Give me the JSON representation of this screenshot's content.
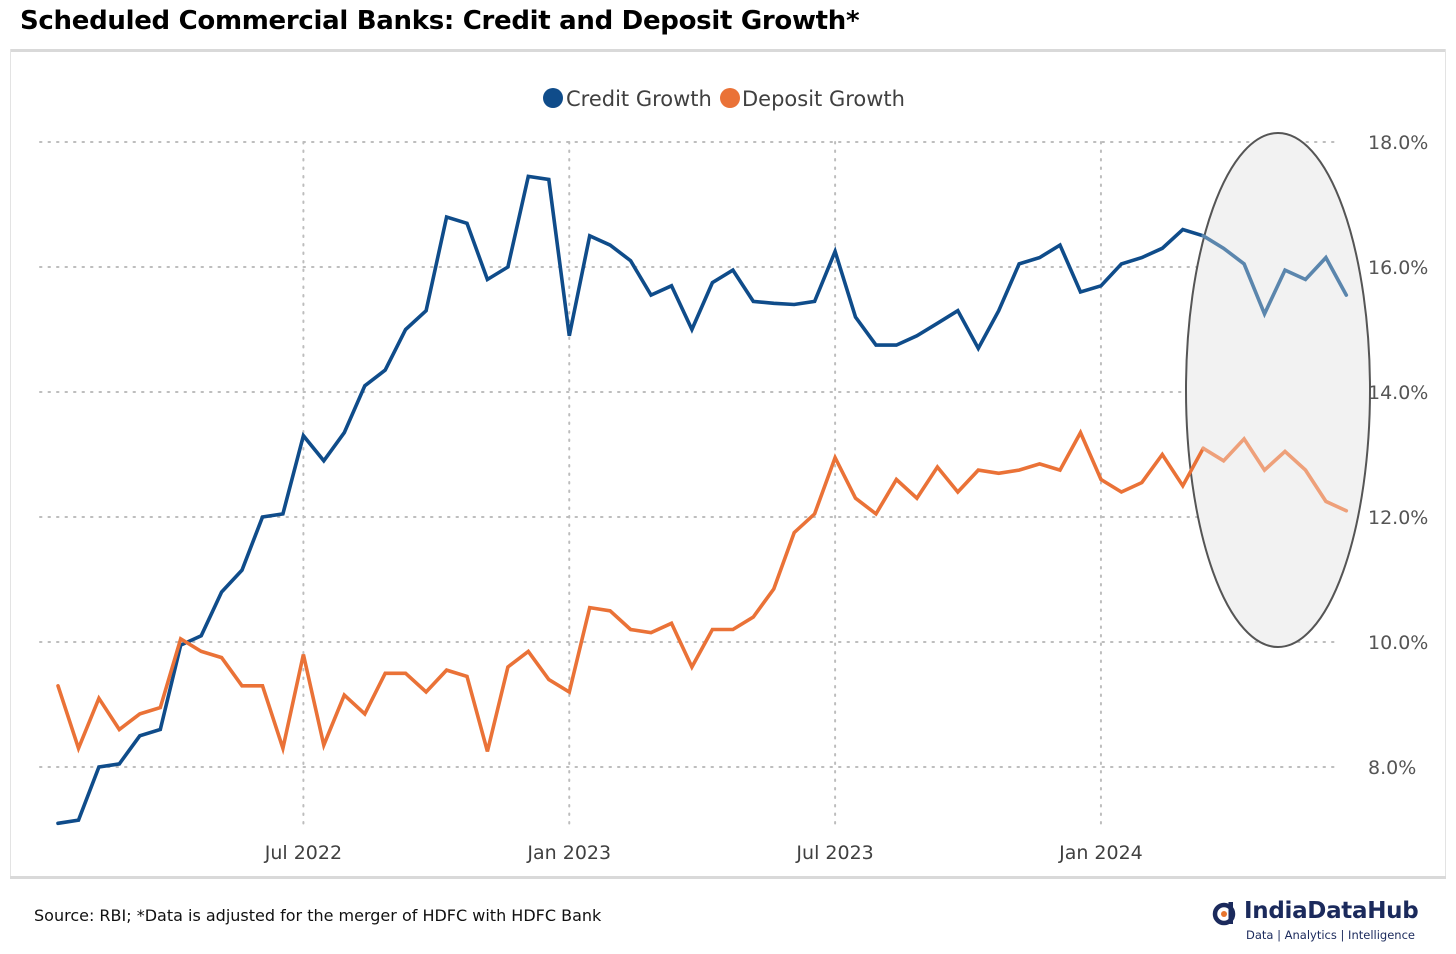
{
  "header": {
    "title": "Scheduled Commercial Banks: Credit and Deposit Growth*"
  },
  "footer": {
    "source": "Source: RBI; *Data is adjusted for the merger of HDFC with HDFC Bank",
    "brand_name": "IndiaDataHub",
    "brand_tagline": "Data | Analytics | Intelligence"
  },
  "colors": {
    "credit": "#0f4c8a",
    "credit_highlight": "#5b86ad",
    "deposit": "#ea7237",
    "deposit_highlight": "#eea07a",
    "highlight_fill": "#f2f2f2",
    "highlight_stroke": "#555555"
  },
  "chart_data": {
    "type": "line",
    "title": "Scheduled Commercial Banks: Credit and Deposit Growth*",
    "y_tick_labels": [
      "8.0%",
      "10.0%",
      "12.0%",
      "14.0%",
      "16.0%",
      "18.0%"
    ],
    "y_ticks": [
      8,
      10,
      12,
      14,
      16,
      18
    ],
    "ylim": [
      7.0,
      18.8
    ],
    "x_tick_labels": [
      "Jul 2022",
      "Jan 2023",
      "Jul 2023",
      "Jan 2024"
    ],
    "x_ticks": [
      12,
      25,
      38,
      51
    ],
    "xlim": [
      -0.15,
      65.5
    ],
    "legend": {
      "position": "top-center",
      "entries": [
        "Credit Growth",
        "Deposit Growth"
      ]
    },
    "grid": "dotted",
    "highlight_from_index": 56,
    "series": [
      {
        "name": "Credit Growth",
        "values": [
          7.1,
          7.15,
          8.0,
          8.05,
          8.5,
          8.6,
          9.95,
          10.1,
          10.8,
          11.15,
          12.0,
          12.05,
          13.3,
          12.9,
          13.35,
          14.1,
          14.35,
          15.0,
          15.3,
          16.8,
          16.7,
          15.8,
          16.0,
          17.45,
          17.4,
          14.9,
          16.5,
          16.35,
          16.1,
          15.55,
          15.7,
          15.0,
          15.75,
          15.95,
          15.45,
          15.42,
          15.4,
          15.45,
          16.25,
          15.2,
          14.75,
          14.75,
          14.9,
          15.1,
          15.3,
          14.7,
          15.3,
          16.05,
          16.15,
          16.35,
          15.6,
          15.7,
          16.05,
          16.15,
          16.3,
          16.6,
          16.5,
          16.3,
          16.05,
          15.25,
          15.95,
          15.8,
          16.15,
          15.55
        ]
      },
      {
        "name": "Deposit Growth",
        "values": [
          9.3,
          8.3,
          9.1,
          8.6,
          8.85,
          8.95,
          10.05,
          9.85,
          9.75,
          9.3,
          9.3,
          8.3,
          9.8,
          8.35,
          9.15,
          8.85,
          9.5,
          9.5,
          9.2,
          9.55,
          9.45,
          8.25,
          9.6,
          9.85,
          9.4,
          9.2,
          10.55,
          10.5,
          10.2,
          10.15,
          10.3,
          9.6,
          10.2,
          10.2,
          10.4,
          10.85,
          11.75,
          12.05,
          12.95,
          12.3,
          12.05,
          12.6,
          12.3,
          12.8,
          12.4,
          12.75,
          12.7,
          12.75,
          12.85,
          12.75,
          13.35,
          12.6,
          12.4,
          12.55,
          13.0,
          12.5,
          13.1,
          12.9,
          13.25,
          12.75,
          13.05,
          12.75,
          12.25,
          12.1
        ]
      }
    ]
  }
}
